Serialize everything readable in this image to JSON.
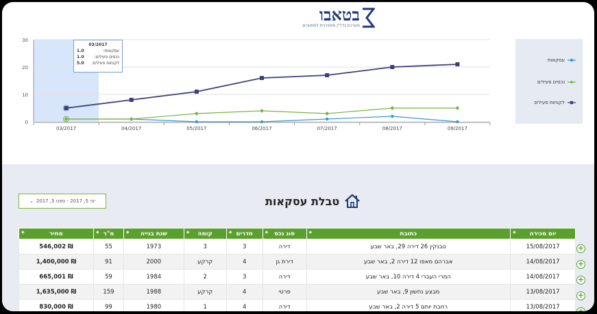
{
  "logo": {
    "name": "בטאבו",
    "tagline": "מערכת נדל\"ן מתפרנית למתווכים"
  },
  "chart_data": {
    "type": "line",
    "categories": [
      "03/2017",
      "04/2017",
      "05/2017",
      "06/2017",
      "07/2017",
      "08/2017",
      "09/2017"
    ],
    "ylim": [
      0,
      30
    ],
    "yticks": [
      0,
      10,
      20,
      30
    ],
    "series": [
      {
        "name": "עסקאות",
        "color": "#2e9bd6",
        "marker": "circle",
        "values": [
          1,
          1,
          0,
          0,
          1,
          2,
          0
        ]
      },
      {
        "name": "נכסים פעילים",
        "color": "#7cb342",
        "marker": "diamond",
        "values": [
          1,
          1,
          3,
          4,
          3,
          5,
          5
        ]
      },
      {
        "name": "לקוחות פעילים",
        "color": "#3a3f7a",
        "marker": "square",
        "values": [
          5,
          8,
          11,
          16,
          17,
          20,
          21
        ]
      }
    ],
    "legend": "right",
    "highlight_category": "03/2017"
  },
  "tooltip": {
    "header": "03/2017",
    "rows": [
      {
        "label": "עסקאות:",
        "value": "1.0"
      },
      {
        "label": "נכסים פעילים:",
        "value": "1.0"
      },
      {
        "label": "לקוחות פעילים:",
        "value": "5.0"
      }
    ]
  },
  "filter": {
    "label": "יוני 5, 2017 - ספט 5, 2017",
    "chevron": "chevron-down-icon"
  },
  "section": {
    "title": "טבלת עסקאות",
    "icon": "house-icon"
  },
  "table": {
    "headers": [
      "יום מכירה",
      "כתובת",
      "סוג נכס",
      "חדרים",
      "קומה",
      "שנת בנייה",
      "מ\"ר",
      "מחיר"
    ],
    "rows": [
      [
        "15/08/2017",
        "טבנקין 26 דירה 29, באר שבע",
        "דירה",
        "3",
        "3",
        "1973",
        "55",
        "546,002 ₪"
      ],
      [
        "14/08/2017",
        "אברהם מאפו 12 דירה 2, באר שבע",
        "דירת גן",
        "4",
        "קרקע",
        "2000",
        "91",
        "1,400,000 ₪"
      ],
      [
        "14/08/2017",
        "המרי העברי 4 דירה 10, באר שבע",
        "דירה",
        "3",
        "2",
        "1984",
        "59",
        "665,001 ₪"
      ],
      [
        "13/08/2017",
        "מבצע נחשון 9, באר שבע",
        "פרטי",
        "4",
        "קרקע",
        "1988",
        "159",
        "1,635,000 ₪"
      ],
      [
        "13/08/2017",
        "רחבת יותם 5 דירה 2, באר שבע",
        "דירה",
        "4",
        "1",
        "1980",
        "99",
        "830,000 ₪"
      ]
    ]
  },
  "colors": {
    "header_green": "#5aa02c",
    "navy": "#1f3a7a",
    "light_panel": "#e8ebf2"
  }
}
